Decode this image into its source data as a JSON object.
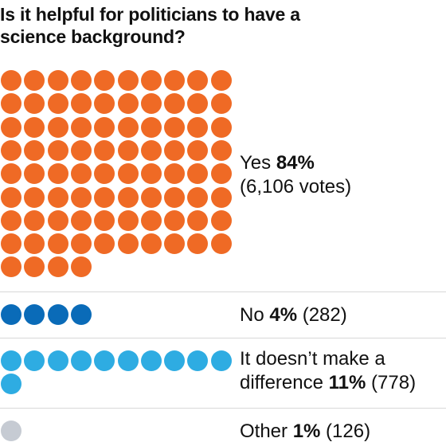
{
  "title": "Is it helpful for politicians to have a science background?",
  "colors": {
    "yes": "#ef6a25",
    "no": "#0a6bb8",
    "difference": "#2eace2",
    "other": "#c6cbd3"
  },
  "chart_data": {
    "type": "dot-grid",
    "title": "Is it helpful for politicians to have a science background?",
    "dots_per_row": 10,
    "series": [
      {
        "key": "yes",
        "name": "Yes",
        "percent": 84,
        "votes": 6106,
        "dots": 84,
        "label_line1_pre": "Yes ",
        "label_line1_bold": "84%",
        "label_line1_post": "",
        "label_line2_pre": "(6,106 votes)",
        "label_line2_bold": "",
        "label_line2_post": ""
      },
      {
        "key": "no",
        "name": "No",
        "percent": 4,
        "votes": 282,
        "dots": 4,
        "label_line1_pre": "No ",
        "label_line1_bold": "4%",
        "label_line1_post": " (282)"
      },
      {
        "key": "difference",
        "name": "It doesn’t make a difference",
        "percent": 11,
        "votes": 778,
        "dots": 11,
        "label_line1_pre": "It doesn’t make a",
        "label_line1_bold": "",
        "label_line1_post": "",
        "label_line2_pre": "difference ",
        "label_line2_bold": "11%",
        "label_line2_post": " (778)"
      },
      {
        "key": "other",
        "name": "Other",
        "percent": 1,
        "votes": 126,
        "dots": 1,
        "label_line1_pre": "Other ",
        "label_line1_bold": "1%",
        "label_line1_post": " (126)"
      }
    ]
  }
}
